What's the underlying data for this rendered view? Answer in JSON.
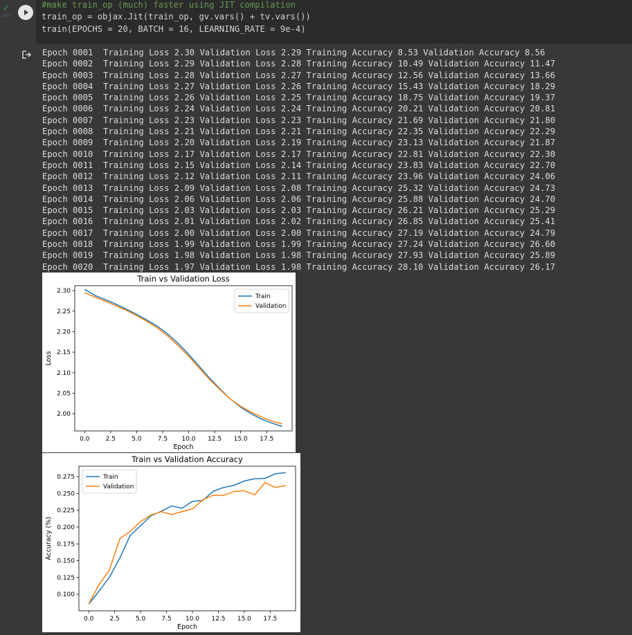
{
  "cell": {
    "status_check": "✓",
    "exec_time": "3m",
    "code": [
      {
        "type": "comment",
        "text": "#make train_op (much) faster using JIT compilation"
      },
      {
        "type": "code",
        "text": "train_op = objax.Jit(train_op, gv.vars() + tv.vars())"
      },
      {
        "type": "code",
        "text": "train(EPOCHS = 20, BATCH = 16, LEARNING_RATE = 9e-4)"
      }
    ]
  },
  "output_lines": [
    "Epoch 0001  Training Loss 2.30 Validation Loss 2.29 Training Accuracy 8.53 Validation Accuracy 8.56",
    "Epoch 0002  Training Loss 2.29 Validation Loss 2.28 Training Accuracy 10.49 Validation Accuracy 11.47",
    "Epoch 0003  Training Loss 2.28 Validation Loss 2.27 Training Accuracy 12.56 Validation Accuracy 13.66",
    "Epoch 0004  Training Loss 2.27 Validation Loss 2.26 Training Accuracy 15.43 Validation Accuracy 18.29",
    "Epoch 0005  Training Loss 2.26 Validation Loss 2.25 Training Accuracy 18.75 Validation Accuracy 19.37",
    "Epoch 0006  Training Loss 2.24 Validation Loss 2.24 Training Accuracy 20.21 Validation Accuracy 20.81",
    "Epoch 0007  Training Loss 2.23 Validation Loss 2.23 Training Accuracy 21.69 Validation Accuracy 21.80",
    "Epoch 0008  Training Loss 2.21 Validation Loss 2.21 Training Accuracy 22.35 Validation Accuracy 22.29",
    "Epoch 0009  Training Loss 2.20 Validation Loss 2.19 Training Accuracy 23.13 Validation Accuracy 21.87",
    "Epoch 0010  Training Loss 2.17 Validation Loss 2.17 Training Accuracy 22.81 Validation Accuracy 22.30",
    "Epoch 0011  Training Loss 2.15 Validation Loss 2.14 Training Accuracy 23.83 Validation Accuracy 22.70",
    "Epoch 0012  Training Loss 2.12 Validation Loss 2.11 Training Accuracy 23.96 Validation Accuracy 24.06",
    "Epoch 0013  Training Loss 2.09 Validation Loss 2.08 Training Accuracy 25.32 Validation Accuracy 24.73",
    "Epoch 0014  Training Loss 2.06 Validation Loss 2.06 Training Accuracy 25.88 Validation Accuracy 24.70",
    "Epoch 0015  Training Loss 2.03 Validation Loss 2.03 Training Accuracy 26.21 Validation Accuracy 25.29",
    "Epoch 0016  Training Loss 2.01 Validation Loss 2.02 Training Accuracy 26.85 Validation Accuracy 25.41",
    "Epoch 0017  Training Loss 2.00 Validation Loss 2.00 Training Accuracy 27.19 Validation Accuracy 24.79",
    "Epoch 0018  Training Loss 1.99 Validation Loss 1.99 Training Accuracy 27.24 Validation Accuracy 26.60",
    "Epoch 0019  Training Loss 1.98 Validation Loss 1.98 Training Accuracy 27.93 Validation Accuracy 25.89",
    "Epoch 0020  Training Loss 1.97 Validation Loss 1.98 Training Accuracy 28.10 Validation Accuracy 26.17"
  ],
  "colors": {
    "train": "#1f77b4",
    "validation": "#ff7f0e"
  },
  "chart_data": [
    {
      "type": "line",
      "title": "Train vs Validation Loss",
      "xlabel": "Epoch",
      "ylabel": "Loss",
      "xlim": [
        -0.95,
        19.95
      ],
      "ylim": [
        1.958,
        2.312
      ],
      "xticks": [
        0.0,
        2.5,
        5.0,
        7.5,
        10.0,
        12.5,
        15.0,
        17.5
      ],
      "xtick_labels": [
        "0.0",
        "2.5",
        "5.0",
        "7.5",
        "10.0",
        "12.5",
        "15.0",
        "17.5"
      ],
      "yticks": [
        2.0,
        2.05,
        2.1,
        2.15,
        2.2,
        2.25,
        2.3
      ],
      "ytick_labels": [
        "2.00",
        "2.05",
        "2.10",
        "2.15",
        "2.20",
        "2.25",
        "2.30"
      ],
      "legend": "top-right",
      "x": [
        0,
        1,
        2,
        3,
        4,
        5,
        6,
        7,
        8,
        9,
        10,
        11,
        12,
        13,
        14,
        15,
        16,
        17,
        18,
        19
      ],
      "series": [
        {
          "name": "Train",
          "values": [
            2.303,
            2.288,
            2.278,
            2.267,
            2.255,
            2.242,
            2.228,
            2.213,
            2.194,
            2.171,
            2.145,
            2.116,
            2.087,
            2.061,
            2.036,
            2.016,
            2.0,
            1.987,
            1.977,
            1.969
          ]
        },
        {
          "name": "Validation",
          "values": [
            2.295,
            2.284,
            2.274,
            2.263,
            2.252,
            2.239,
            2.225,
            2.209,
            2.189,
            2.166,
            2.14,
            2.112,
            2.084,
            2.059,
            2.036,
            2.018,
            2.004,
            1.992,
            1.982,
            1.975
          ]
        }
      ]
    },
    {
      "type": "line",
      "title": "Train vs Validation Accuracy",
      "xlabel": "Epoch",
      "ylabel": "Accuracy (%)",
      "xlim": [
        -0.95,
        19.95
      ],
      "ylim": [
        0.0755,
        0.2905
      ],
      "xticks": [
        0.0,
        2.5,
        5.0,
        7.5,
        10.0,
        12.5,
        15.0,
        17.5
      ],
      "xtick_labels": [
        "0.0",
        "2.5",
        "5.0",
        "7.5",
        "10.0",
        "12.5",
        "15.0",
        "17.5"
      ],
      "yticks": [
        0.1,
        0.125,
        0.15,
        0.175,
        0.2,
        0.225,
        0.25,
        0.275
      ],
      "ytick_labels": [
        "0.100",
        "0.125",
        "0.150",
        "0.175",
        "0.200",
        "0.225",
        "0.250",
        "0.275"
      ],
      "legend": "top-left",
      "x": [
        0,
        1,
        2,
        3,
        4,
        5,
        6,
        7,
        8,
        9,
        10,
        11,
        12,
        13,
        14,
        15,
        16,
        17,
        18,
        19
      ],
      "series": [
        {
          "name": "Train",
          "values": [
            0.0853,
            0.1049,
            0.1256,
            0.1543,
            0.1875,
            0.2021,
            0.2169,
            0.2235,
            0.2313,
            0.2281,
            0.2383,
            0.2396,
            0.2532,
            0.2588,
            0.2621,
            0.2685,
            0.2719,
            0.2724,
            0.2793,
            0.281
          ]
        },
        {
          "name": "Validation",
          "values": [
            0.0856,
            0.1147,
            0.1366,
            0.1829,
            0.1937,
            0.2081,
            0.218,
            0.2229,
            0.2187,
            0.223,
            0.227,
            0.2406,
            0.2473,
            0.247,
            0.2529,
            0.2541,
            0.2479,
            0.266,
            0.2589,
            0.2617
          ]
        }
      ]
    }
  ]
}
